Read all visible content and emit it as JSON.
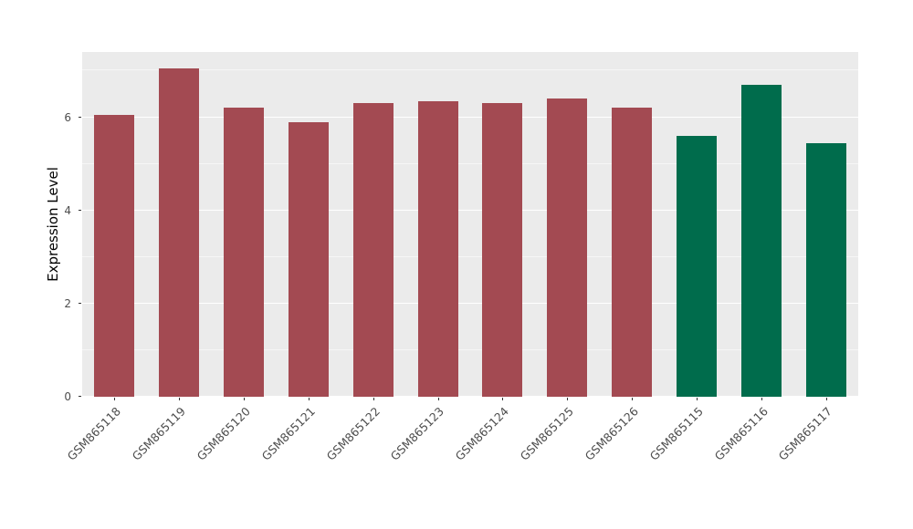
{
  "figure": {
    "background": "#FFFFFF"
  },
  "chart_data": {
    "type": "bar",
    "title": "",
    "xlabel": "",
    "ylabel": "Expression Level",
    "categories": [
      "GSM865118",
      "GSM865119",
      "GSM865120",
      "GSM865121",
      "GSM865122",
      "GSM865123",
      "GSM865124",
      "GSM865125",
      "GSM865126",
      "GSM865115",
      "GSM865116",
      "GSM865117"
    ],
    "values": [
      6.05,
      7.05,
      6.2,
      5.9,
      6.3,
      6.35,
      6.3,
      6.4,
      6.2,
      5.6,
      6.7,
      5.45
    ],
    "bar_colors": [
      "#A34A52",
      "#A34A52",
      "#A34A52",
      "#A34A52",
      "#A34A52",
      "#A34A52",
      "#A34A52",
      "#A34A52",
      "#A34A52",
      "#006C4C",
      "#006C4C",
      "#006C4C"
    ],
    "group_colors": {
      "red_group": "#A34A52",
      "green_group": "#006C4C"
    },
    "ylim": [
      0,
      7.4
    ],
    "yticks_major": [
      0,
      2,
      4,
      6
    ],
    "ytick_labels": [
      "0",
      "2",
      "4",
      "6"
    ],
    "yticks_minor": [
      1,
      3,
      5,
      7
    ],
    "grid": true,
    "legend": "none",
    "panel_background": "#EBEBEB",
    "gridline_color": "#FFFFFF",
    "axis_text_color": "#4D4D4D",
    "bar_width_fraction": 0.62
  }
}
